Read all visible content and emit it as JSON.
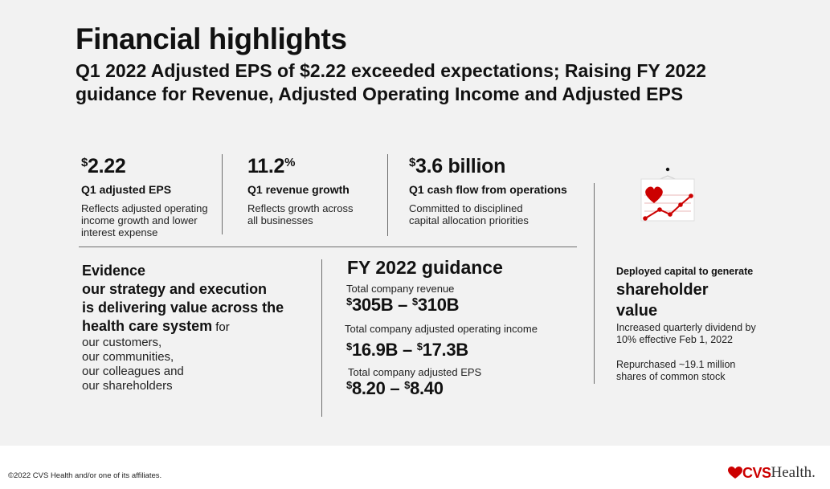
{
  "header": {
    "title": "Financial highlights",
    "subtitle": "Q1 2022 Adjusted EPS of $2.22 exceeded expectations; Raising FY 2022 guidance for Revenue, Adjusted Operating Income and Adjusted EPS"
  },
  "stats": [
    {
      "prefix": "$",
      "value": "2.22",
      "suffix": "",
      "label": "Q1 adjusted EPS",
      "desc_lines": [
        "Reflects adjusted operating",
        "income growth and lower",
        "interest expense"
      ]
    },
    {
      "prefix": "",
      "value": "11.2",
      "suffix": "%",
      "label": "Q1 revenue growth",
      "desc_lines": [
        "Reflects growth across",
        "all businesses"
      ]
    },
    {
      "prefix": "$",
      "value": "3.6 billion",
      "suffix": "",
      "label": "Q1 cash flow from operations",
      "desc_lines": [
        "Committed to disciplined",
        "capital allocation priorities"
      ]
    }
  ],
  "evidence": {
    "line1": "Evidence",
    "line2": "our strategy and execution",
    "line3": "is delivering value across the",
    "line4_bold": "health care system",
    "line4_light": " for",
    "lines": [
      "our customers,",
      "our communities,",
      "our colleagues and",
      "our shareholders"
    ]
  },
  "guidance": {
    "title": "FY 2022 guidance",
    "items": [
      {
        "label": "Total company revenue",
        "low_prefix": "$",
        "low": "305B",
        "sep": " – ",
        "high_prefix": "$",
        "high": "310B"
      },
      {
        "label": "Total company adjusted operating income",
        "low_prefix": "$",
        "low": "16.9B",
        "sep": " – ",
        "high_prefix": "$",
        "high": "17.3B"
      },
      {
        "label": "Total company adjusted EPS",
        "low_prefix": "$",
        "low": "8.20",
        "sep": " – ",
        "high_prefix": "$",
        "high": "8.40"
      }
    ]
  },
  "capital": {
    "label": "Deployed capital to generate",
    "big_line1": "shareholder",
    "big_line2": "value",
    "desc1_lines": [
      "Increased quarterly dividend by",
      "10% effective Feb 1, 2022"
    ],
    "desc2_lines": [
      "Repurchased ~19.1 million",
      "shares of common stock"
    ]
  },
  "icons": {
    "capital_icon": "heart-chart-envelope-icon",
    "logo_heart": "heart-icon"
  },
  "colors": {
    "brand_red": "#cc0000",
    "background": "#f2f2f2"
  },
  "footer": {
    "copyright": "©2022 CVS Health and/or one of its affiliates.",
    "logo_cvs": "CVS",
    "logo_health": "Health."
  }
}
